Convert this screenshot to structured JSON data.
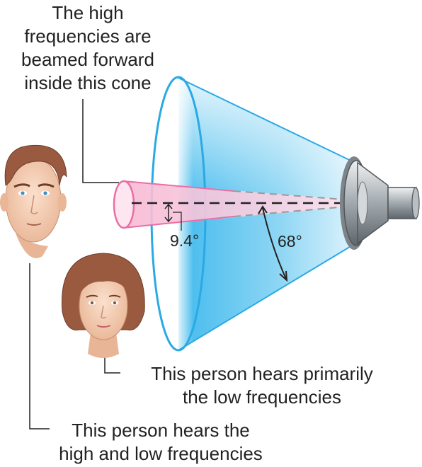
{
  "cone_label": {
    "lines": [
      "The high",
      "frequencies are",
      "beamed forward",
      "inside this cone"
    ]
  },
  "angles": {
    "high_freq_half_angle": "9.4°",
    "low_freq_half_angle": "68°"
  },
  "people": {
    "woman_caption": [
      "This person hears primarily",
      "the low frequencies"
    ],
    "man_caption": [
      "This person hears the",
      "high and low frequencies"
    ]
  },
  "colors": {
    "low_cone": "#5cc3ee",
    "high_cone": "#f4a9c9",
    "speaker": "#9aa1a6",
    "skin": "#f3cfb3",
    "hair": "#9a5a3f"
  }
}
